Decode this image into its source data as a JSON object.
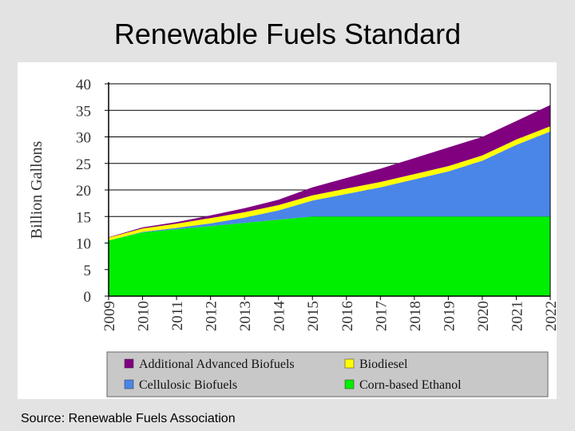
{
  "page": {
    "title": "Renewable Fuels Standard",
    "source": "Source:  Renewable Fuels Association"
  },
  "chart_data": {
    "type": "area",
    "stacked": true,
    "title": "Renewable Fuels Standard",
    "xlabel": "",
    "ylabel": "Billion Gallons",
    "ylim": [
      0,
      40
    ],
    "yticks": [
      0,
      5,
      10,
      15,
      20,
      25,
      30,
      35,
      40
    ],
    "grid": true,
    "legend_position": "bottom",
    "categories": [
      "2009",
      "2010",
      "2011",
      "2012",
      "2013",
      "2014",
      "2015",
      "2016",
      "2017",
      "2018",
      "2019",
      "2020",
      "2021",
      "2022"
    ],
    "series": [
      {
        "name": "Corn-based Ethanol",
        "color": "#00ee00",
        "values": [
          10.5,
          12.0,
          12.6,
          13.2,
          13.8,
          14.4,
          15.0,
          15.0,
          15.0,
          15.0,
          15.0,
          15.0,
          15.0,
          15.0
        ]
      },
      {
        "name": "Cellulosic Biofuels",
        "color": "#4a86e8",
        "values": [
          0.0,
          0.1,
          0.25,
          0.5,
          1.0,
          1.75,
          3.0,
          4.25,
          5.5,
          7.0,
          8.5,
          10.5,
          13.5,
          16.0
        ]
      },
      {
        "name": "Biodiesel",
        "color": "#ffff00",
        "values": [
          0.5,
          0.65,
          0.8,
          1.0,
          1.0,
          1.0,
          1.0,
          1.0,
          1.0,
          1.0,
          1.0,
          1.0,
          1.0,
          1.0
        ]
      },
      {
        "name": "Additional Advanced Biofuels",
        "color": "#800080",
        "values": [
          0.1,
          0.2,
          0.3,
          0.5,
          0.75,
          1.0,
          1.5,
          2.0,
          2.5,
          3.0,
          3.5,
          3.5,
          3.5,
          4.0
        ]
      }
    ],
    "legend": [
      {
        "name": "Additional Advanced Biofuels",
        "color": "#800080"
      },
      {
        "name": "Biodiesel",
        "color": "#ffff00"
      },
      {
        "name": "Cellulosic Biofuels",
        "color": "#4a86e8"
      },
      {
        "name": "Corn-based Ethanol",
        "color": "#00ee00"
      }
    ]
  }
}
